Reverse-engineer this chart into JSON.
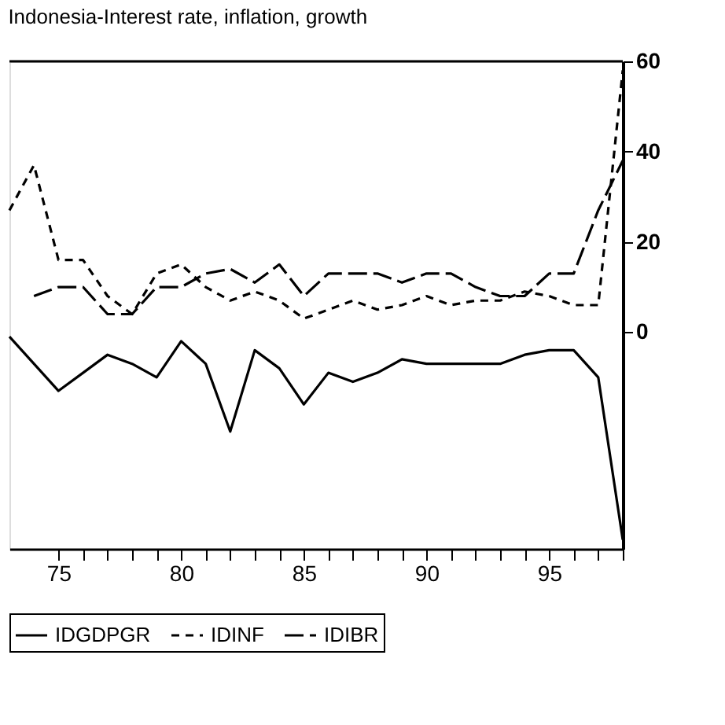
{
  "chart_data": {
    "type": "line",
    "title": "Indonesia-Interest rate, inflation, growth",
    "x": [
      73,
      74,
      75,
      76,
      77,
      78,
      79,
      80,
      81,
      82,
      83,
      84,
      85,
      86,
      87,
      88,
      89,
      90,
      91,
      92,
      93,
      94,
      95,
      96,
      97,
      98
    ],
    "series": [
      {
        "name": "IDGDPGR",
        "color": "#000000",
        "line_style": "solid",
        "values": [
          -1,
          -7,
          -13,
          -9,
          -5,
          -7,
          -10,
          -2,
          -7,
          -22,
          -4,
          -8,
          -16,
          -9,
          -11,
          -9,
          -6,
          -7,
          -7,
          -7,
          -7,
          -5,
          -4,
          -4,
          -10,
          -46
        ]
      },
      {
        "name": "IDINF",
        "color": "#000000",
        "line_style": "dashed",
        "values": [
          27,
          37,
          16,
          16,
          8,
          4,
          13,
          15,
          10,
          7,
          9,
          7,
          3,
          5,
          7,
          5,
          6,
          8,
          6,
          7,
          7,
          9,
          8,
          6,
          6,
          58
        ]
      },
      {
        "name": "IDIBR",
        "color": "#000000",
        "line_style": "dashed",
        "values": [
          null,
          8,
          10,
          10,
          4,
          4,
          10,
          10,
          13,
          14,
          11,
          15,
          8,
          13,
          13,
          13,
          11,
          13,
          13,
          10,
          8,
          8,
          13,
          13,
          27,
          38
        ]
      }
    ],
    "xlim": [
      73,
      98
    ],
    "xticks": [
      75,
      {
        "value": 76,
        "label": null
      },
      {
        "value": 77,
        "label": null
      },
      {
        "value": 78,
        "label": null
      },
      {
        "value": 79,
        "label": null
      },
      80,
      {
        "value": 81,
        "label": null
      },
      {
        "value": 82,
        "label": null
      },
      {
        "value": 83,
        "label": null
      },
      {
        "value": 84,
        "label": null
      },
      85,
      {
        "value": 86,
        "label": null
      },
      {
        "value": 87,
        "label": null
      },
      {
        "value": 88,
        "label": null
      },
      {
        "value": 89,
        "label": null
      },
      90,
      {
        "value": 91,
        "label": null
      },
      {
        "value": 92,
        "label": null
      },
      {
        "value": 93,
        "label": null
      },
      {
        "value": 94,
        "label": null
      },
      95,
      {
        "value": 96,
        "label": null
      },
      {
        "value": 97,
        "label": null
      },
      {
        "value": 98,
        "label": null
      }
    ],
    "ylim": [
      -48,
      60
    ],
    "yticks": [
      0,
      20,
      40,
      60
    ],
    "grid": false,
    "legend": "bottom"
  }
}
